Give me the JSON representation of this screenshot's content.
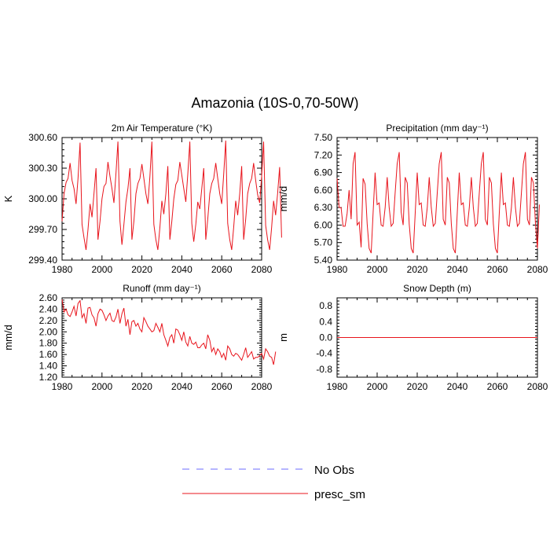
{
  "figure": {
    "title": "Amazonia (10S-0,70-50W)",
    "series_color": "#e8141c",
    "obs_color": "#6b6bff",
    "legend": [
      {
        "label": "No Obs",
        "style": "dashed"
      },
      {
        "label": "presc_sm",
        "style": "solid"
      }
    ]
  },
  "chart_data": [
    {
      "type": "line",
      "title": "2m Air Temperature (°K)",
      "ylabel": "K",
      "xlim": [
        1980,
        2080
      ],
      "ylim": [
        299.4,
        300.6
      ],
      "xticks": [
        "1980",
        "2000",
        "2020",
        "2040",
        "2060",
        "2080"
      ],
      "yticks": [
        "299.40",
        "299.70",
        "300.00",
        "300.30",
        "300.60"
      ],
      "series": [
        {
          "name": "presc_sm",
          "x_start": 1980,
          "x_step": 1,
          "values": [
            299.78,
            300.05,
            300.16,
            300.2,
            300.35,
            300.18,
            300.1,
            299.95,
            300.2,
            300.55,
            299.75,
            299.62,
            299.5,
            299.7,
            299.95,
            299.82,
            300.05,
            300.3,
            299.6,
            299.78,
            300.0,
            300.12,
            300.15,
            300.36,
            300.22,
            300.1,
            299.96,
            300.25,
            300.56,
            299.78,
            299.55,
            299.75,
            299.97,
            300.1,
            300.3,
            299.6,
            299.78,
            300.05,
            300.15,
            300.2,
            300.34,
            300.2,
            300.05,
            299.95,
            300.22,
            300.56,
            299.75,
            299.6,
            299.5,
            299.72,
            299.98,
            299.85,
            300.05,
            300.32,
            299.6,
            299.78,
            300.0,
            300.14,
            300.18,
            300.36,
            300.23,
            300.1,
            299.97,
            300.24,
            300.56,
            299.76,
            299.58,
            299.75,
            299.97,
            299.9,
            300.1,
            300.3,
            299.6,
            299.8,
            300.05,
            300.15,
            300.2,
            300.35,
            300.2,
            300.05,
            299.95,
            300.24,
            300.57,
            299.76,
            299.6,
            299.5,
            299.72,
            299.98,
            299.84,
            300.05,
            300.32,
            299.6,
            299.8,
            300.05,
            300.15,
            300.2,
            300.35,
            300.18,
            300.04,
            299.96,
            300.22,
            300.56,
            299.74,
            299.6,
            299.5,
            299.72,
            299.98,
            299.84,
            300.05,
            300.31,
            299.62
          ]
        }
      ]
    },
    {
      "type": "line",
      "title": "Precipitation (mm day⁻¹)",
      "ylabel": "mm/d",
      "xlim": [
        1980,
        2080
      ],
      "ylim": [
        5.4,
        7.5
      ],
      "xticks": [
        "1980",
        "2000",
        "2020",
        "2040",
        "2060",
        "2080"
      ],
      "yticks": [
        "5.40",
        "5.70",
        "6.00",
        "6.30",
        "6.60",
        "6.90",
        "7.20",
        "7.50"
      ],
      "series": [
        {
          "name": "presc_sm",
          "x_start": 1980,
          "x_step": 1,
          "values": [
            6.8,
            6.3,
            6.3,
            5.98,
            5.98,
            6.2,
            6.6,
            6.1,
            7.05,
            7.25,
            6.0,
            6.05,
            5.62,
            6.8,
            6.7,
            6.02,
            5.6,
            5.52,
            6.22,
            6.9,
            6.35,
            6.38,
            6.0,
            5.98,
            6.3,
            6.82,
            6.3,
            5.98,
            6.03,
            6.55,
            7.05,
            7.25,
            6.22,
            6.0,
            6.82,
            6.72,
            6.02,
            5.6,
            5.52,
            6.22,
            6.9,
            6.35,
            6.38,
            6.0,
            5.98,
            6.3,
            6.82,
            6.3,
            5.98,
            6.03,
            6.55,
            7.05,
            7.25,
            6.1,
            6.0,
            6.82,
            6.72,
            6.02,
            5.6,
            5.52,
            6.22,
            6.9,
            6.35,
            6.38,
            6.0,
            5.98,
            6.3,
            6.82,
            6.3,
            5.98,
            6.03,
            6.55,
            7.05,
            7.25,
            6.1,
            6.0,
            6.82,
            6.72,
            6.02,
            5.6,
            5.52,
            6.22,
            6.9,
            6.35,
            6.38,
            6.0,
            5.98,
            6.3,
            6.82,
            6.3,
            5.98,
            6.03,
            6.55,
            7.05,
            7.25,
            6.1,
            6.0,
            6.82,
            6.72,
            6.02,
            5.6,
            6.35
          ]
        }
      ]
    },
    {
      "type": "line",
      "title": "Runoff (mm day⁻¹)",
      "ylabel": "mm/d",
      "xlim": [
        1980,
        2080
      ],
      "ylim": [
        1.2,
        2.6
      ],
      "xticks": [
        "1980",
        "2000",
        "2020",
        "2040",
        "2060",
        "2080"
      ],
      "yticks": [
        "1.20",
        "1.40",
        "1.60",
        "1.80",
        "2.00",
        "2.20",
        "2.40",
        "2.60"
      ],
      "series": [
        {
          "name": "presc_sm",
          "x_start": 1980,
          "x_step": 1,
          "values": [
            2.57,
            2.35,
            2.4,
            2.3,
            2.27,
            2.35,
            2.45,
            2.28,
            2.5,
            2.55,
            2.25,
            2.32,
            2.15,
            2.42,
            2.43,
            2.3,
            2.25,
            2.1,
            2.32,
            2.4,
            2.38,
            2.3,
            2.2,
            2.28,
            2.33,
            2.2,
            2.18,
            2.26,
            2.4,
            2.15,
            2.32,
            2.42,
            2.1,
            2.22,
            1.95,
            2.18,
            2.2,
            2.1,
            2.15,
            2.05,
            2.0,
            2.25,
            2.18,
            2.1,
            2.05,
            2.0,
            2.02,
            2.15,
            2.08,
            2.0,
            2.15,
            1.95,
            1.85,
            1.75,
            1.9,
            1.95,
            1.8,
            2.05,
            2.03,
            1.95,
            1.85,
            2.0,
            1.82,
            1.75,
            1.92,
            1.8,
            1.78,
            1.82,
            1.72,
            1.72,
            1.77,
            1.8,
            1.7,
            1.95,
            1.85,
            1.65,
            1.72,
            1.6,
            1.7,
            1.65,
            1.55,
            1.62,
            1.5,
            1.75,
            1.7,
            1.6,
            1.57,
            1.62,
            1.6,
            1.55,
            1.5,
            1.6,
            1.72,
            1.55,
            1.6,
            1.65,
            1.52,
            1.55,
            1.55,
            1.58,
            1.62,
            1.52,
            1.7,
            1.65,
            1.57,
            1.55,
            1.42,
            1.65
          ]
        }
      ]
    },
    {
      "type": "line",
      "title": "Snow Depth (m)",
      "ylabel": "m",
      "xlim": [
        1980,
        2080
      ],
      "ylim": [
        -1.0,
        1.0
      ],
      "xticks": [
        "1980",
        "2000",
        "2020",
        "2040",
        "2060",
        "2080"
      ],
      "yticks": [
        "-0.8",
        "-0.4",
        "0.0",
        "0.4",
        "0.8"
      ],
      "ytick_values": [
        -0.8,
        -0.4,
        0.0,
        0.4,
        0.8
      ],
      "series": [
        {
          "name": "presc_sm",
          "x": [
            1980,
            2080
          ],
          "values": [
            0.0,
            0.0
          ]
        }
      ]
    }
  ]
}
